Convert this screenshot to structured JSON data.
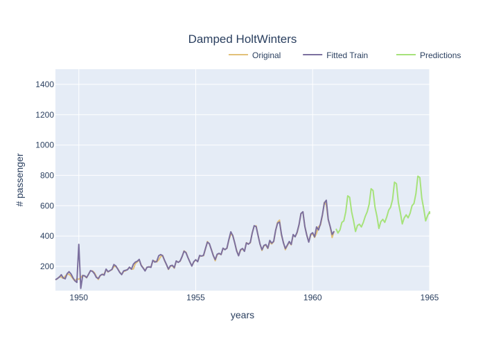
{
  "chart_data": {
    "type": "line",
    "title": "Damped HoltWinters",
    "xlabel": "years",
    "ylabel": "# passenger",
    "xlim": [
      1949.0,
      1965.0
    ],
    "ylim": [
      40,
      1500
    ],
    "xticks": [
      1950,
      1955,
      1960,
      1965
    ],
    "yticks": [
      200,
      400,
      600,
      800,
      1000,
      1200,
      1400
    ],
    "grid": true,
    "legend_position": "top-right",
    "plot_bg": "#e5ecf6",
    "series": [
      {
        "name": "Original",
        "color": "#e2c078",
        "x_start": 1949.0,
        "x_step": 0.08333333,
        "values": [
          112,
          118,
          132,
          129,
          121,
          135,
          148,
          148,
          136,
          119,
          104,
          118,
          115,
          126,
          141,
          135,
          125,
          149,
          170,
          170,
          158,
          133,
          114,
          140,
          145,
          150,
          178,
          163,
          172,
          178,
          199,
          199,
          184,
          162,
          146,
          166,
          171,
          180,
          193,
          181,
          183,
          218,
          230,
          242,
          209,
          191,
          172,
          194,
          196,
          196,
          236,
          235,
          229,
          243,
          264,
          272,
          237,
          211,
          180,
          201,
          204,
          188,
          235,
          227,
          234,
          264,
          302,
          293,
          259,
          229,
          203,
          229,
          242,
          233,
          267,
          269,
          270,
          315,
          364,
          347,
          312,
          274,
          237,
          278,
          284,
          277,
          317,
          313,
          318,
          374,
          413,
          405,
          355,
          306,
          271,
          306,
          315,
          301,
          356,
          348,
          355,
          422,
          465,
          467,
          404,
          347,
          305,
          336,
          340,
          318,
          362,
          348,
          363,
          435,
          491,
          505,
          404,
          359,
          310,
          337,
          360,
          342,
          406,
          396,
          420,
          472,
          548,
          559,
          463,
          407,
          362,
          405,
          417,
          391,
          419,
          461,
          472,
          535,
          622,
          606,
          508,
          461,
          390,
          432
        ]
      },
      {
        "name": "Fitted Train",
        "color": "#7b6f9e",
        "x_start": 1949.0,
        "x_step": 0.08333333,
        "values": [
          112,
          120,
          129,
          145,
          124,
          118,
          152,
          165,
          150,
          125,
          105,
          94,
          345,
          55,
          140,
          138,
          126,
          148,
          172,
          167,
          152,
          127,
          120,
          140,
          148,
          142,
          182,
          165,
          172,
          180,
          212,
          203,
          182,
          160,
          146,
          170,
          174,
          178,
          195,
          182,
          214,
          228,
          234,
          246,
          206,
          189,
          170,
          194,
          197,
          193,
          240,
          228,
          233,
          270,
          278,
          271,
          240,
          212,
          182,
          204,
          207,
          191,
          236,
          226,
          236,
          265,
          300,
          290,
          258,
          229,
          202,
          231,
          244,
          231,
          272,
          268,
          273,
          318,
          360,
          350,
          311,
          271,
          245,
          280,
          286,
          278,
          320,
          310,
          320,
          377,
          428,
          403,
          356,
          301,
          270,
          310,
          318,
          299,
          355,
          346,
          358,
          420,
          468,
          462,
          403,
          346,
          310,
          338,
          344,
          320,
          371,
          353,
          365,
          438,
          485,
          492,
          412,
          355,
          318,
          340,
          364,
          345,
          410,
          395,
          425,
          475,
          548,
          560,
          462,
          405,
          360,
          412,
          422,
          395,
          460,
          440,
          480,
          540,
          618,
          636,
          510,
          462,
          410,
          432
        ]
      },
      {
        "name": "Predictions",
        "color": "#a6e27a",
        "x_start": 1961.0,
        "x_step": 0.08333333,
        "values": [
          448,
          420,
          440,
          490,
          500,
          560,
          665,
          655,
          560,
          500,
          430,
          470,
          478,
          460,
          490,
          530,
          560,
          610,
          712,
          700,
          590,
          530,
          450,
          495,
          510,
          490,
          525,
          570,
          590,
          640,
          755,
          745,
          620,
          555,
          480,
          520,
          540,
          520,
          550,
          600,
          615,
          680,
          795,
          785,
          650,
          580,
          500,
          535,
          560,
          545
        ]
      }
    ]
  }
}
